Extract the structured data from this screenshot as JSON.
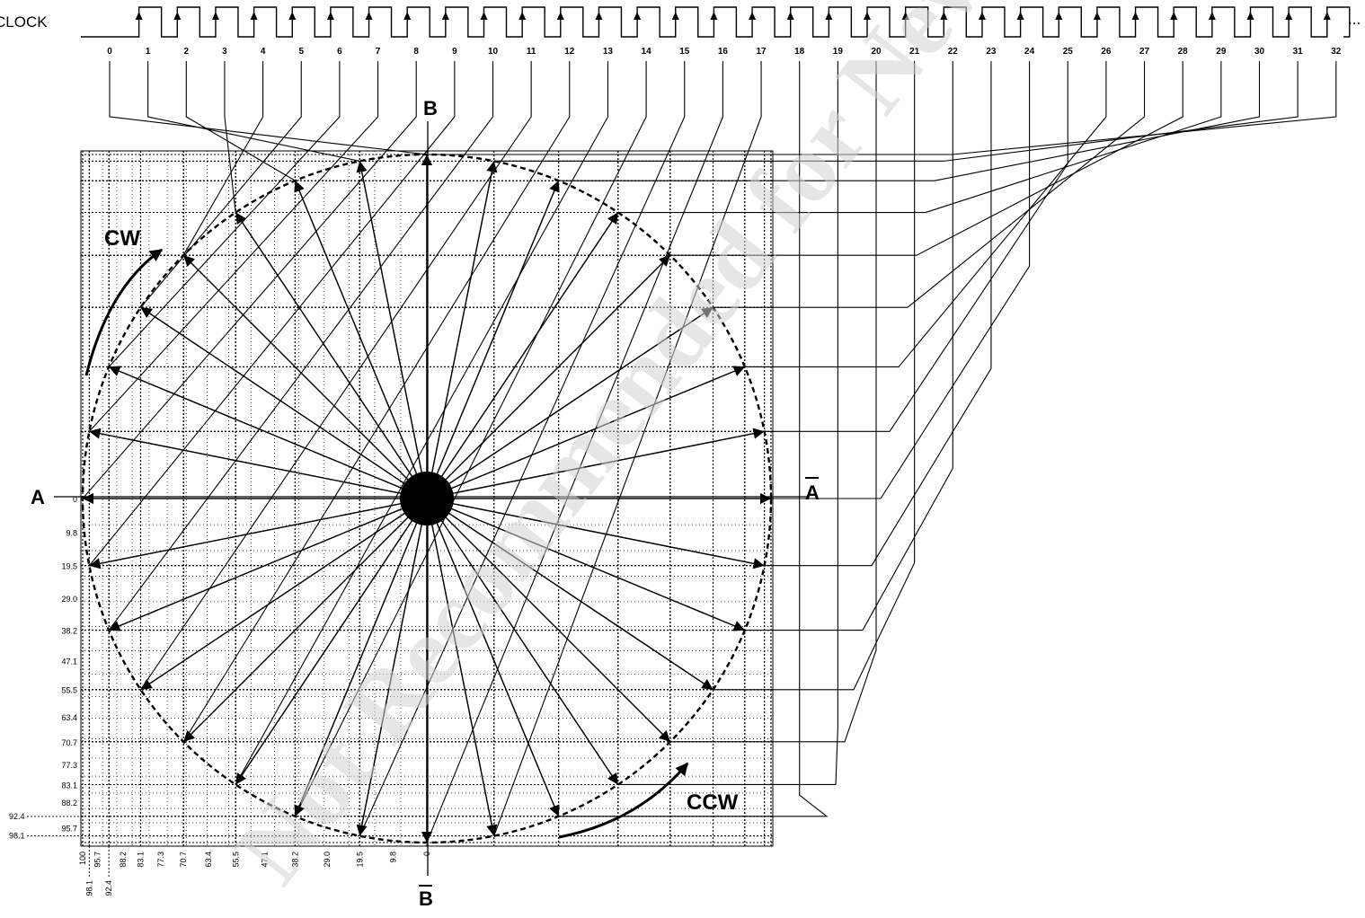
{
  "clock": {
    "label": "CLOCK",
    "steps": [
      "0",
      "1",
      "2",
      "3",
      "4",
      "5",
      "6",
      "7",
      "8",
      "9",
      "10",
      "11",
      "12",
      "13",
      "14",
      "15",
      "16",
      "17",
      "18",
      "19",
      "20",
      "21",
      "22",
      "23",
      "24",
      "25",
      "26",
      "27",
      "28",
      "29",
      "30",
      "31",
      "32"
    ],
    "continuation": "..."
  },
  "axes": {
    "a": "A",
    "a_bar": "A",
    "b": "B",
    "b_bar": "B"
  },
  "rotation": {
    "cw": "CW",
    "ccw": "CCW"
  },
  "scale_y": [
    "0",
    "9.8",
    "19.5",
    "29.0",
    "38.2",
    "47.1",
    "55.5",
    "63.4",
    "70.7",
    "77.3",
    "83.1",
    "88.2",
    "92.4",
    "95.7",
    "98.1"
  ],
  "scale_x": [
    "100",
    "98.1",
    "95.7",
    "92.4",
    "88.2",
    "83.1",
    "77.3",
    "70.7",
    "63.4",
    "55.5",
    "47.1",
    "38.2",
    "29.0",
    "19.5",
    "9.8",
    "0"
  ],
  "watermark": "Not Recommended for New Design",
  "colors": {
    "line": "#000000",
    "watermark": "#d2d2d2",
    "background": "#ffffff"
  }
}
